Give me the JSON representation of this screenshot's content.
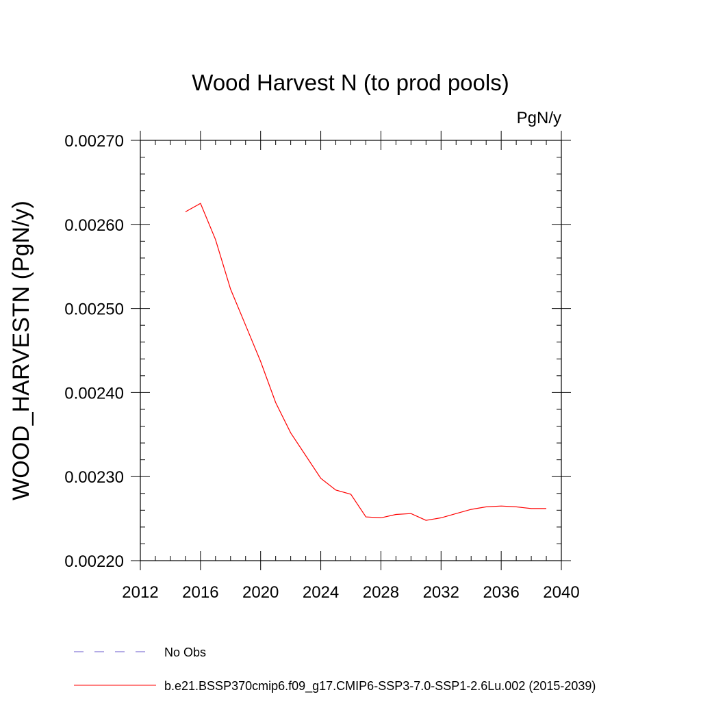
{
  "chart_data": {
    "type": "line",
    "title": "Wood Harvest N (to prod pools)",
    "units": "PgN/y",
    "ylabel": "WOOD_HARVESTN  (PgN/y)",
    "xlabel": "",
    "xlim": [
      2012,
      2040
    ],
    "ylim": [
      0.0022,
      0.0027
    ],
    "xticks": [
      2012,
      2016,
      2020,
      2024,
      2028,
      2032,
      2036,
      2040
    ],
    "xtick_labels": [
      "2012",
      "2016",
      "2020",
      "2024",
      "2028",
      "2032",
      "2036",
      "2040"
    ],
    "yticks": [
      0.0022,
      0.0023,
      0.0024,
      0.0025,
      0.0026,
      0.0027
    ],
    "ytick_labels": [
      "0.00220",
      "0.00230",
      "0.00240",
      "0.00250",
      "0.00260",
      "0.00270"
    ],
    "grid": false,
    "legend_position": "bottom",
    "series": [
      {
        "name": "b.e21.BSSP370cmip6.f09_g17.CMIP6-SSP3-7.0-SSP1-2.6Lu.002 (2015-2039)",
        "color": "#ff0000",
        "dash": "solid",
        "x": [
          2015,
          2016,
          2017,
          2018,
          2019,
          2020,
          2021,
          2022,
          2023,
          2024,
          2025,
          2026,
          2027,
          2028,
          2029,
          2030,
          2031,
          2032,
          2033,
          2034,
          2035,
          2036,
          2037,
          2038,
          2039
        ],
        "y": [
          0.002615,
          0.002625,
          0.002582,
          0.002523,
          0.00248,
          0.002437,
          0.002388,
          0.002352,
          0.002325,
          0.002298,
          0.002284,
          0.002279,
          0.002252,
          0.002251,
          0.002255,
          0.002256,
          0.002248,
          0.002251,
          0.002256,
          0.002261,
          0.002264,
          0.002265,
          0.002264,
          0.002262,
          0.002262
        ]
      }
    ],
    "legend": [
      {
        "label": "No Obs",
        "color": "#6a5acd",
        "dash": "dashed"
      },
      {
        "label": "b.e21.BSSP370cmip6.f09_g17.CMIP6-SSP3-7.0-SSP1-2.6Lu.002 (2015-2039)",
        "color": "#ff0000",
        "dash": "solid"
      }
    ]
  }
}
